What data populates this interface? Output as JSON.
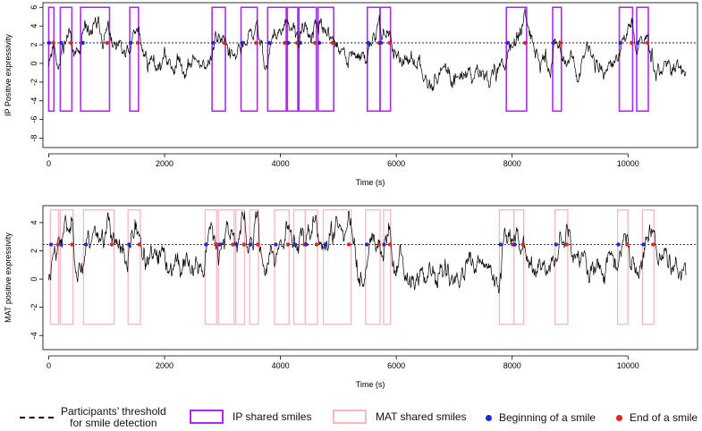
{
  "chart_data": [
    {
      "type": "line",
      "ylabel": "IP Positive expressivity",
      "xlabel": "Time (s)",
      "xlim": [
        -100,
        11200
      ],
      "ylim": [
        -9,
        6.5
      ],
      "x_ticks": [
        0,
        2000,
        4000,
        6000,
        8000,
        10000
      ],
      "y_ticks": [
        -8,
        -6,
        -4,
        -2,
        0,
        2,
        4,
        6
      ],
      "threshold": 2.2,
      "box_bottom": -5.1,
      "box_top": 6,
      "shared_smiles": [
        [
          0,
          90
        ],
        [
          200,
          400
        ],
        [
          550,
          1050
        ],
        [
          1400,
          1550
        ],
        [
          2820,
          3050
        ],
        [
          3320,
          3600
        ],
        [
          3780,
          4100
        ],
        [
          4120,
          4300
        ],
        [
          4320,
          4620
        ],
        [
          4650,
          4920
        ],
        [
          5500,
          5720
        ],
        [
          5720,
          5900
        ],
        [
          7900,
          8250
        ],
        [
          8700,
          8850
        ],
        [
          9850,
          10080
        ],
        [
          10150,
          10350
        ]
      ],
      "seed": 11,
      "series_name": "IP positive expressivity"
    },
    {
      "type": "line",
      "ylabel": "MAT positive expressivity",
      "xlabel": "Time (s)",
      "xlim": [
        -100,
        11200
      ],
      "ylim": [
        -5,
        5.2
      ],
      "x_ticks": [
        0,
        2000,
        4000,
        6000,
        8000,
        10000
      ],
      "y_ticks": [
        -4,
        -2,
        0,
        2,
        4
      ],
      "threshold": 2.45,
      "box_bottom": -3.2,
      "box_top": 4.9,
      "shared_smiles": [
        [
          30,
          170
        ],
        [
          200,
          420
        ],
        [
          600,
          1130
        ],
        [
          1370,
          1580
        ],
        [
          2700,
          2900
        ],
        [
          2930,
          3200
        ],
        [
          3230,
          3380
        ],
        [
          3470,
          3620
        ],
        [
          3900,
          4150
        ],
        [
          4230,
          4430
        ],
        [
          4430,
          4640
        ],
        [
          4740,
          5220
        ],
        [
          5470,
          5720
        ],
        [
          5780,
          5900
        ],
        [
          7780,
          8030
        ],
        [
          8030,
          8200
        ],
        [
          8740,
          8960
        ],
        [
          9820,
          10000
        ],
        [
          10250,
          10450
        ]
      ],
      "seed": 23,
      "series_name": "MAT positive expressivity"
    }
  ],
  "legend": {
    "threshold_line1": "Participants’ threshold",
    "threshold_line2": "for smile detection",
    "ip": "IP shared smiles",
    "mat": "MAT shared smiles",
    "beginning": "Beginning of a smile",
    "end": "End of a smile"
  },
  "colors": {
    "ip_box": "#a62ee8",
    "mat_box": "#f4b8c2",
    "begin_dot": "#1f2ad6",
    "end_dot": "#e4261c",
    "line": "#000000"
  }
}
